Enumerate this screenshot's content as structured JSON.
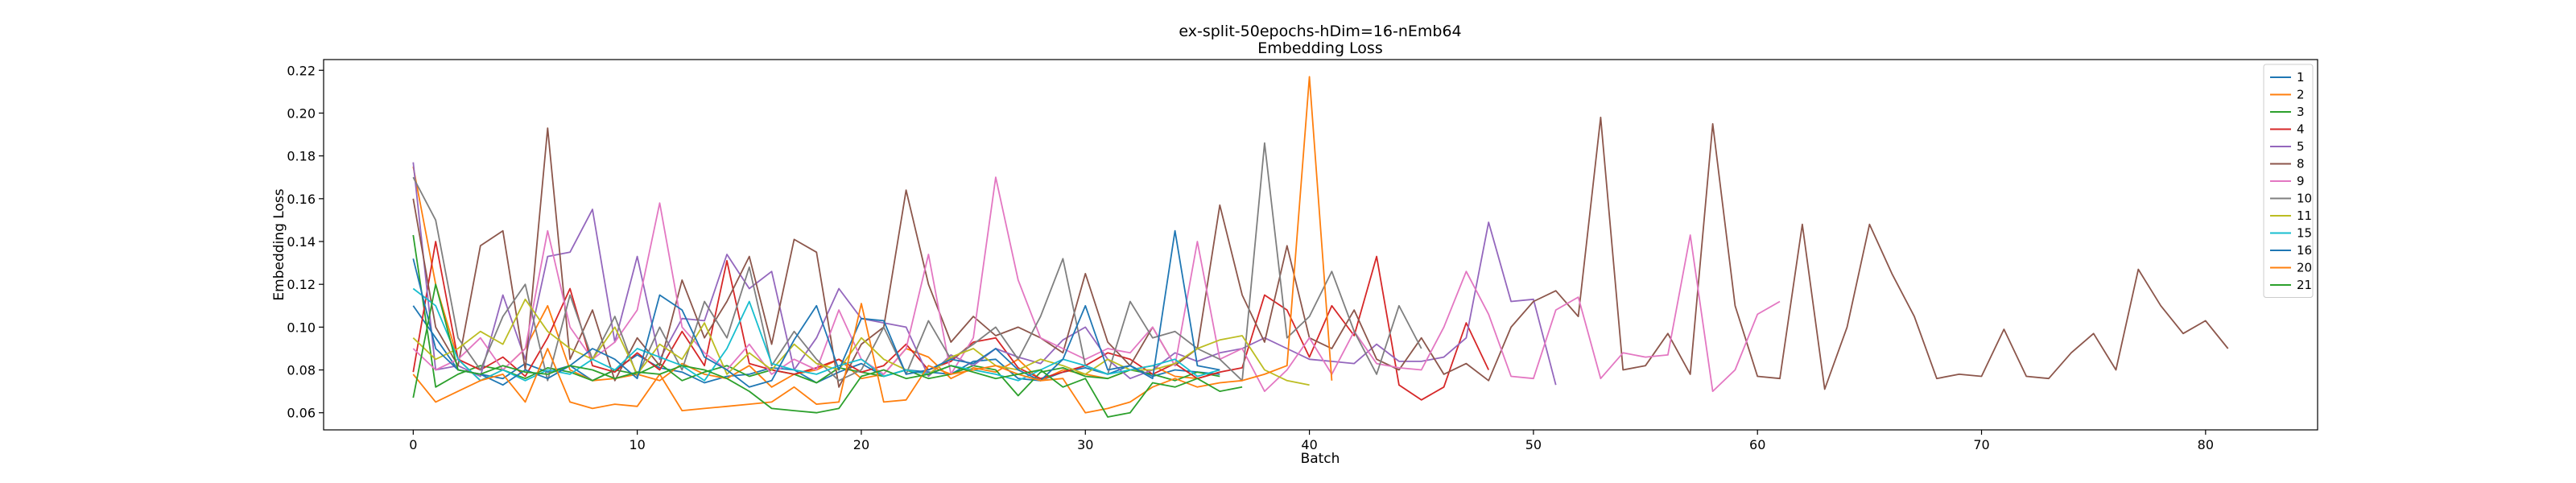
{
  "chart_data": {
    "type": "line",
    "title": "ex-split-50epochs-hDim=16-nEmb64",
    "subtitle": "Embedding Loss",
    "xlabel": "Batch",
    "ylabel": "Embedding Loss",
    "xlim": [
      -4,
      85
    ],
    "ylim": [
      0.052,
      0.225
    ],
    "xticks": [
      0,
      10,
      20,
      30,
      40,
      50,
      60,
      70,
      80
    ],
    "yticks": [
      0.06,
      0.08,
      0.1,
      0.12,
      0.14,
      0.16,
      0.18,
      0.2,
      0.22
    ],
    "grid": false,
    "legend_position": "top-right",
    "series": [
      {
        "name": "1",
        "color": "#1f77b4",
        "values": [
          0.11,
          0.095,
          0.08,
          0.078,
          0.076,
          0.083,
          0.079,
          0.082,
          0.075,
          0.08,
          0.087,
          0.081,
          0.079,
          0.074,
          0.077,
          0.078,
          0.081,
          0.08,
          0.074,
          0.079,
          0.083,
          0.077,
          0.08,
          0.079,
          0.078,
          0.084,
          0.085,
          0.076,
          0.075,
          0.079,
          0.081,
          0.078,
          0.082,
          0.077,
          0.08,
          0.079,
          0.078
        ]
      },
      {
        "name": "2",
        "color": "#ff7f0e",
        "values": [
          0.175,
          0.12,
          0.085,
          0.075,
          0.08,
          0.09,
          0.11,
          0.08,
          0.075,
          0.076,
          0.078,
          0.075,
          0.083,
          0.078,
          0.076,
          0.082,
          0.072,
          0.078,
          0.08,
          0.085,
          0.076,
          0.078,
          0.09,
          0.086,
          0.076,
          0.081,
          0.079,
          0.085,
          0.075,
          0.08,
          0.078,
          0.076,
          0.08,
          0.082,
          0.077,
          0.076,
          0.079
        ]
      },
      {
        "name": "3",
        "color": "#2ca02c",
        "values": [
          0.143,
          0.072,
          0.078,
          0.082,
          0.08,
          0.076,
          0.081,
          0.079,
          0.075,
          0.08,
          0.078,
          0.083,
          0.075,
          0.079,
          0.082,
          0.077,
          0.08,
          0.078,
          0.074,
          0.081,
          0.079,
          0.077,
          0.08,
          0.076,
          0.078,
          0.082,
          0.08,
          0.068,
          0.079,
          0.081,
          0.077,
          0.076,
          0.08,
          0.078,
          0.075,
          0.079,
          0.077
        ]
      },
      {
        "name": "4",
        "color": "#d62728",
        "values": [
          0.079,
          0.14,
          0.085,
          0.08,
          0.086,
          0.077,
          0.095,
          0.118,
          0.082,
          0.079,
          0.088,
          0.08,
          0.098,
          0.082,
          0.131,
          0.083,
          0.08,
          0.078,
          0.081,
          0.085,
          0.079,
          0.082,
          0.092,
          0.08,
          0.084,
          0.093,
          0.095,
          0.081,
          0.076,
          0.079,
          0.082,
          0.088,
          0.085,
          0.078,
          0.083,
          0.076,
          0.079,
          0.081,
          0.115,
          0.108,
          0.086,
          0.11,
          0.096,
          0.133,
          0.073,
          0.066,
          0.072,
          0.102,
          0.08
        ]
      },
      {
        "name": "5",
        "color": "#9467bd",
        "values": [
          0.177,
          0.08,
          0.082,
          0.077,
          0.115,
          0.085,
          0.133,
          0.135,
          0.155,
          0.093,
          0.133,
          0.085,
          0.104,
          0.103,
          0.134,
          0.118,
          0.126,
          0.08,
          0.095,
          0.118,
          0.104,
          0.102,
          0.1,
          0.077,
          0.087,
          0.082,
          0.09,
          0.086,
          0.083,
          0.094,
          0.1,
          0.085,
          0.076,
          0.08,
          0.088,
          0.084,
          0.088,
          0.09,
          0.095,
          0.09,
          0.085,
          0.084,
          0.083,
          0.092,
          0.084,
          0.084,
          0.086,
          0.095,
          0.149,
          0.112,
          0.113,
          0.073
        ]
      },
      {
        "name": "8",
        "color": "#8c564b",
        "values": [
          0.16,
          0.1,
          0.082,
          0.138,
          0.145,
          0.08,
          0.193,
          0.085,
          0.108,
          0.075,
          0.095,
          0.082,
          0.122,
          0.095,
          0.112,
          0.133,
          0.092,
          0.141,
          0.135,
          0.072,
          0.092,
          0.1,
          0.164,
          0.12,
          0.093,
          0.105,
          0.096,
          0.1,
          0.095,
          0.088,
          0.125,
          0.093,
          0.082,
          0.1,
          0.082,
          0.09,
          0.157,
          0.115,
          0.093,
          0.138,
          0.095,
          0.09,
          0.108,
          0.085,
          0.08,
          0.095,
          0.078,
          0.083,
          0.075,
          0.1,
          0.112,
          0.117,
          0.105,
          0.198,
          0.08,
          0.082,
          0.097,
          0.078,
          0.195,
          0.11,
          0.077,
          0.076,
          0.148,
          0.071,
          0.1,
          0.148,
          0.125,
          0.105,
          0.076,
          0.078,
          0.077,
          0.099,
          0.077,
          0.076,
          0.088,
          0.097,
          0.08,
          0.127,
          0.11,
          0.097,
          0.103,
          0.09
        ]
      },
      {
        "name": "9",
        "color": "#e377c2",
        "values": [
          0.09,
          0.08,
          0.085,
          0.095,
          0.08,
          0.09,
          0.145,
          0.1,
          0.085,
          0.093,
          0.108,
          0.158,
          0.1,
          0.088,
          0.08,
          0.092,
          0.078,
          0.085,
          0.08,
          0.108,
          0.085,
          0.078,
          0.09,
          0.134,
          0.078,
          0.095,
          0.17,
          0.122,
          0.095,
          0.09,
          0.085,
          0.09,
          0.088,
          0.1,
          0.082,
          0.14,
          0.085,
          0.09,
          0.07,
          0.08,
          0.095,
          0.078,
          0.098,
          0.083,
          0.081,
          0.08,
          0.1,
          0.126,
          0.106,
          0.077,
          0.076,
          0.108,
          0.114,
          0.076,
          0.088,
          0.086,
          0.087,
          0.143,
          0.07,
          0.08,
          0.106,
          0.112
        ]
      },
      {
        "name": "10",
        "color": "#7f7f7f",
        "values": [
          0.17,
          0.15,
          0.095,
          0.08,
          0.105,
          0.12,
          0.075,
          0.115,
          0.085,
          0.105,
          0.077,
          0.1,
          0.08,
          0.112,
          0.095,
          0.128,
          0.082,
          0.098,
          0.085,
          0.075,
          0.08,
          0.1,
          0.078,
          0.103,
          0.085,
          0.092,
          0.1,
          0.085,
          0.105,
          0.132,
          0.082,
          0.078,
          0.112,
          0.095,
          0.098,
          0.09,
          0.085,
          0.075,
          0.186,
          0.095,
          0.105,
          0.126,
          0.098,
          0.078,
          0.11,
          0.09
        ]
      },
      {
        "name": "11",
        "color": "#bcbd22",
        "values": [
          0.095,
          0.085,
          0.09,
          0.098,
          0.092,
          0.113,
          0.098,
          0.09,
          0.085,
          0.1,
          0.078,
          0.092,
          0.085,
          0.102,
          0.078,
          0.088,
          0.08,
          0.092,
          0.083,
          0.08,
          0.095,
          0.085,
          0.08,
          0.078,
          0.086,
          0.09,
          0.082,
          0.08,
          0.085,
          0.082,
          0.078,
          0.085,
          0.08,
          0.08,
          0.083,
          0.09,
          0.094,
          0.096,
          0.08,
          0.075,
          0.073
        ]
      },
      {
        "name": "15",
        "color": "#17becf",
        "values": [
          0.118,
          0.11,
          0.085,
          0.075,
          0.08,
          0.075,
          0.08,
          0.078,
          0.085,
          0.08,
          0.09,
          0.086,
          0.082,
          0.075,
          0.09,
          0.112,
          0.083,
          0.08,
          0.078,
          0.082,
          0.085,
          0.077,
          0.08,
          0.078,
          0.082,
          0.08,
          0.078,
          0.075,
          0.08,
          0.085,
          0.082,
          0.078,
          0.08,
          0.082,
          0.085,
          0.077,
          0.08
        ]
      },
      {
        "name": "16",
        "color": "#1f77b4",
        "values": [
          0.132,
          0.09,
          0.08,
          0.078,
          0.073,
          0.08,
          0.076,
          0.082,
          0.09,
          0.085,
          0.076,
          0.115,
          0.108,
          0.086,
          0.08,
          0.072,
          0.075,
          0.094,
          0.11,
          0.08,
          0.104,
          0.103,
          0.078,
          0.08,
          0.085,
          0.083,
          0.09,
          0.08,
          0.075,
          0.085,
          0.11,
          0.08,
          0.082,
          0.076,
          0.145,
          0.082,
          0.08
        ]
      },
      {
        "name": "20",
        "color": "#ff7f0e",
        "values": [
          0.078,
          0.065,
          0.07,
          0.075,
          0.078,
          0.065,
          0.09,
          0.065,
          0.062,
          0.064,
          0.063,
          0.078,
          0.061,
          0.062,
          0.063,
          0.064,
          0.065,
          0.072,
          0.064,
          0.065,
          0.111,
          0.065,
          0.066,
          0.082,
          0.078,
          0.08,
          0.082,
          0.078,
          0.075,
          0.076,
          0.06,
          0.062,
          0.065,
          0.072,
          0.076,
          0.072,
          0.074,
          0.075,
          0.078,
          0.082,
          0.217,
          0.075
        ]
      },
      {
        "name": "21",
        "color": "#2ca02c",
        "values": [
          0.067,
          0.12,
          0.08,
          0.078,
          0.082,
          0.079,
          0.078,
          0.082,
          0.08,
          0.076,
          0.079,
          0.078,
          0.082,
          0.08,
          0.076,
          0.07,
          0.062,
          0.061,
          0.06,
          0.062,
          0.077,
          0.08,
          0.076,
          0.078,
          0.082,
          0.079,
          0.076,
          0.078,
          0.08,
          0.072,
          0.076,
          0.058,
          0.06,
          0.074,
          0.072,
          0.076,
          0.07,
          0.072
        ]
      }
    ]
  }
}
